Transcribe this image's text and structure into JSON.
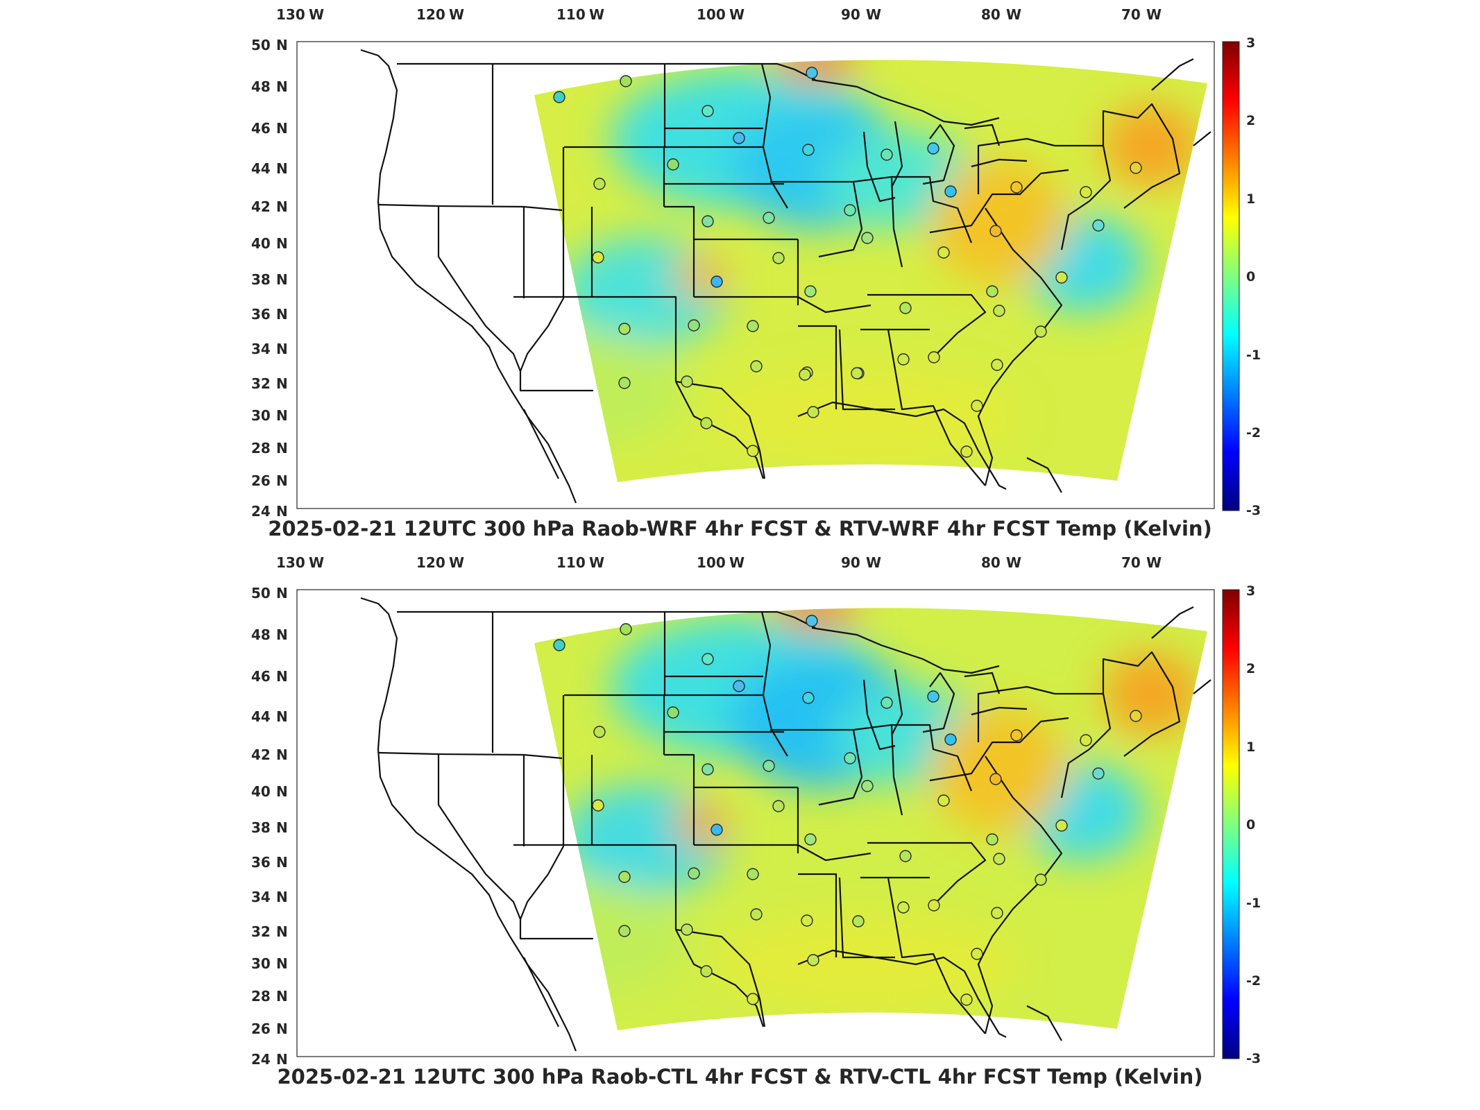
{
  "colorbar": {
    "ticks": [
      "3",
      "2",
      "1",
      "0",
      "-1",
      "-2",
      "-3"
    ]
  },
  "lon_labels": [
    "130",
    "120",
    "110",
    "100",
    "90",
    "80",
    "70"
  ],
  "lon_suffix": "W",
  "lat_labels": [
    "50",
    "48",
    "46",
    "44",
    "42",
    "40",
    "38",
    "36",
    "34",
    "32",
    "30",
    "28",
    "26",
    "24"
  ],
  "lat_suffix": "N",
  "panels": [
    {
      "title": "2025-02-21 12UTC 300 hPa Raob-WRF 4hr FCST & RTV-WRF 4hr FCST Temp (Kelvin)"
    },
    {
      "title": "2025-02-21 12UTC 300 hPa Raob-CTL 4hr FCST & RTV-CTL 4hr FCST Temp (Kelvin)"
    }
  ],
  "colors": {
    "field_base": "#dcef3a",
    "field_cool": "#38e6d8",
    "field_cold": "#1fb8f0",
    "field_warm": "#f7c61e",
    "field_hot": "#f07a14",
    "state_lines": "#111111",
    "colormap": [
      "#00007f",
      "#0000ff",
      "#007fff",
      "#00ffff",
      "#7fff7f",
      "#ffff00",
      "#ff7f00",
      "#ff0000",
      "#7f0000"
    ]
  }
}
